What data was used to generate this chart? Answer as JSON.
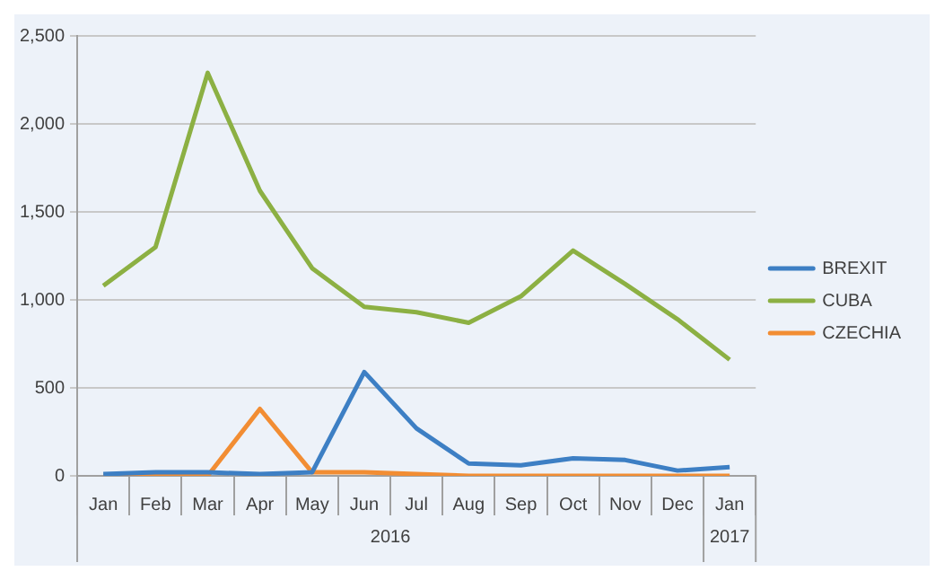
{
  "chart_data": {
    "type": "line",
    "categories": [
      "Jan",
      "Feb",
      "Mar",
      "Apr",
      "May",
      "Jun",
      "Jul",
      "Aug",
      "Sep",
      "Oct",
      "Nov",
      "Dec",
      "Jan"
    ],
    "series": [
      {
        "name": "BREXIT",
        "color": "#3d7fc4",
        "values": [
          10,
          20,
          20,
          10,
          20,
          590,
          270,
          70,
          60,
          100,
          90,
          30,
          50
        ]
      },
      {
        "name": "CUBA",
        "color": "#8cb043",
        "values": [
          1080,
          1300,
          2290,
          1620,
          1180,
          960,
          930,
          870,
          1020,
          1280,
          1090,
          890,
          660
        ]
      },
      {
        "name": "CZECHIA",
        "color": "#f28d33",
        "values": [
          0,
          0,
          0,
          380,
          20,
          20,
          10,
          0,
          0,
          0,
          0,
          0,
          0
        ]
      }
    ],
    "annotations": [
      "2016",
      "2017"
    ],
    "ylim": [
      0,
      2500
    ],
    "yticks": [
      0,
      500,
      {
        "value": 1000,
        "label": "1,000"
      },
      {
        "value": 1500,
        "label": "1,500"
      },
      {
        "value": 2000,
        "label": "2,000"
      },
      {
        "value": 2500,
        "label": "2,500"
      }
    ],
    "grid": "y",
    "legend": "right",
    "marker": "none",
    "line_style": "solid"
  }
}
